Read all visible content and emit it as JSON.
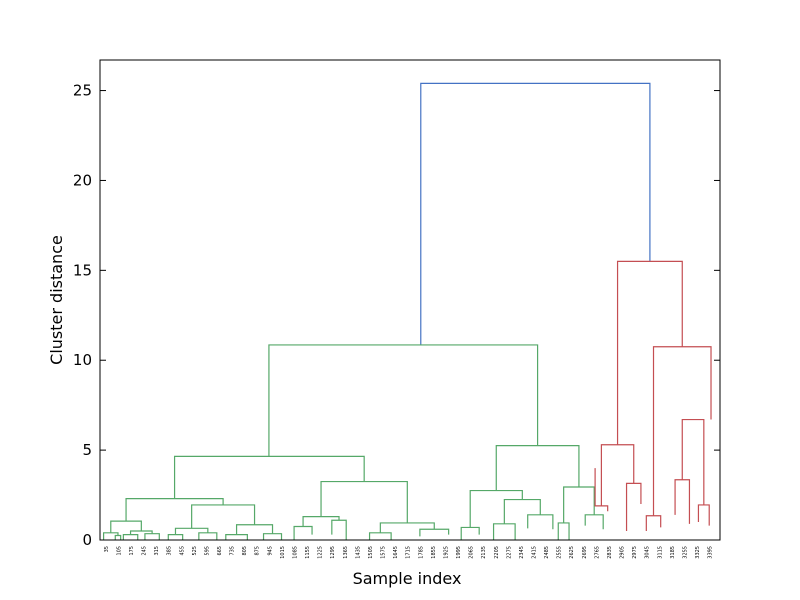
{
  "chart_data": {
    "type": "dendrogram",
    "title": "",
    "xlabel": "Sample index",
    "ylabel": "Cluster distance",
    "ylim": [
      0,
      26.7
    ],
    "yticks": [
      0,
      5,
      10,
      15,
      20,
      25
    ],
    "xlim": [
      0,
      3450
    ],
    "grid": false,
    "colors": {
      "root": "#4472c4",
      "cluster_a": "#55a868",
      "cluster_b": "#c44e52"
    },
    "xtick_labels": [
      "35",
      "105",
      "175",
      "245",
      "315",
      "385",
      "455",
      "525",
      "595",
      "665",
      "735",
      "805",
      "875",
      "945",
      "1015",
      "1085",
      "1155",
      "1225",
      "1295",
      "1365",
      "1435",
      "1505",
      "1575",
      "1645",
      "1715",
      "1785",
      "1855",
      "1925",
      "1995",
      "2065",
      "2135",
      "2205",
      "2275",
      "2345",
      "2415",
      "2485",
      "2555",
      "2625",
      "2695",
      "2765",
      "2835",
      "2905",
      "2975",
      "3045",
      "3115",
      "3185",
      "3255",
      "3325",
      "3395"
    ],
    "merges": [
      {
        "color": "root",
        "x1": 1785,
        "x2": 3060,
        "h": 25.4,
        "b1": 10.85,
        "b2": 15.5
      },
      {
        "color": "cluster_a",
        "x1": 940,
        "x2": 2435,
        "h": 10.85,
        "b1": 4.65,
        "b2": 5.25
      },
      {
        "color": "cluster_a",
        "x1": 415,
        "x2": 1470,
        "h": 4.65,
        "b1": 2.3,
        "b2": 3.25
      },
      {
        "color": "cluster_a",
        "x1": 145,
        "x2": 685,
        "h": 2.3,
        "b1": 1.05,
        "b2": 1.95
      },
      {
        "color": "cluster_a",
        "x1": 60,
        "x2": 230,
        "h": 1.05,
        "b1": 0.4,
        "b2": 0.5
      },
      {
        "color": "cluster_a",
        "x1": 20,
        "x2": 100,
        "h": 0.4,
        "b1": 0,
        "b2": 0.25
      },
      {
        "color": "cluster_a",
        "x1": 85,
        "x2": 115,
        "h": 0.25,
        "b1": 0,
        "b2": 0
      },
      {
        "color": "cluster_a",
        "x1": 170,
        "x2": 290,
        "h": 0.5,
        "b1": 0.3,
        "b2": 0.35
      },
      {
        "color": "cluster_a",
        "x1": 130,
        "x2": 210,
        "h": 0.3,
        "b1": 0,
        "b2": 0
      },
      {
        "color": "cluster_a",
        "x1": 250,
        "x2": 330,
        "h": 0.35,
        "b1": 0,
        "b2": 0
      },
      {
        "color": "cluster_a",
        "x1": 510,
        "x2": 860,
        "h": 1.95,
        "b1": 0.65,
        "b2": 0.85
      },
      {
        "color": "cluster_a",
        "x1": 420,
        "x2": 600,
        "h": 0.65,
        "b1": 0.3,
        "b2": 0.4
      },
      {
        "color": "cluster_a",
        "x1": 380,
        "x2": 460,
        "h": 0.3,
        "b1": 0,
        "b2": 0
      },
      {
        "color": "cluster_a",
        "x1": 550,
        "x2": 650,
        "h": 0.4,
        "b1": 0,
        "b2": 0
      },
      {
        "color": "cluster_a",
        "x1": 760,
        "x2": 960,
        "h": 0.85,
        "b1": 0.3,
        "b2": 0.35
      },
      {
        "color": "cluster_a",
        "x1": 700,
        "x2": 820,
        "h": 0.3,
        "b1": 0,
        "b2": 0
      },
      {
        "color": "cluster_a",
        "x1": 910,
        "x2": 1010,
        "h": 0.35,
        "b1": 0,
        "b2": 0
      },
      {
        "color": "cluster_a",
        "x1": 1230,
        "x2": 1710,
        "h": 3.25,
        "b1": 1.3,
        "b2": 0.95
      },
      {
        "color": "cluster_a",
        "x1": 1130,
        "x2": 1330,
        "h": 1.3,
        "b1": 0.75,
        "b2": 1.1
      },
      {
        "color": "cluster_a",
        "x1": 1080,
        "x2": 1180,
        "h": 0.75,
        "b1": 0,
        "b2": 0.3
      },
      {
        "color": "cluster_a",
        "x1": 1290,
        "x2": 1370,
        "h": 1.1,
        "b1": 0.3,
        "b2": 0
      },
      {
        "color": "cluster_a",
        "x1": 1560,
        "x2": 1860,
        "h": 0.95,
        "b1": 0.4,
        "b2": 0.6
      },
      {
        "color": "cluster_a",
        "x1": 1500,
        "x2": 1620,
        "h": 0.4,
        "b1": 0,
        "b2": 0
      },
      {
        "color": "cluster_a",
        "x1": 1780,
        "x2": 1940,
        "h": 0.6,
        "b1": 0.2,
        "b2": 0.3
      },
      {
        "color": "cluster_a",
        "x1": 2205,
        "x2": 2665,
        "h": 5.25,
        "b1": 2.75,
        "b2": 2.95
      },
      {
        "color": "cluster_a",
        "x1": 2060,
        "x2": 2350,
        "h": 2.75,
        "b1": 0.7,
        "b2": 2.25
      },
      {
        "color": "cluster_a",
        "x1": 2010,
        "x2": 2110,
        "h": 0.7,
        "b1": 0,
        "b2": 0.3
      },
      {
        "color": "cluster_a",
        "x1": 2250,
        "x2": 2450,
        "h": 2.25,
        "b1": 0.9,
        "b2": 1.4
      },
      {
        "color": "cluster_a",
        "x1": 2190,
        "x2": 2310,
        "h": 0.9,
        "b1": 0,
        "b2": 0
      },
      {
        "color": "cluster_a",
        "x1": 2380,
        "x2": 2520,
        "h": 1.4,
        "b1": 0.65,
        "b2": 0.6
      },
      {
        "color": "cluster_a",
        "x1": 2580,
        "x2": 2750,
        "h": 2.95,
        "b1": 0.95,
        "b2": 1.4
      },
      {
        "color": "cluster_a",
        "x1": 2550,
        "x2": 2610,
        "h": 0.95,
        "b1": 0,
        "b2": 0
      },
      {
        "color": "cluster_a",
        "x1": 2700,
        "x2": 2800,
        "h": 1.4,
        "b1": 0.8,
        "b2": 0.6
      },
      {
        "color": "cluster_b",
        "x1": 2880,
        "x2": 3240,
        "h": 15.5,
        "b1": 5.3,
        "b2": 10.75
      },
      {
        "color": "cluster_b",
        "x1": 2790,
        "x2": 2970,
        "h": 5.3,
        "b1": 1.9,
        "b2": 3.15
      },
      {
        "color": "cluster_b",
        "x1": 2755,
        "x2": 2825,
        "h": 1.9,
        "b1": 4.0,
        "b2": 1.6
      },
      {
        "color": "cluster_b",
        "x1": 2930,
        "x2": 3010,
        "h": 3.15,
        "b1": 0.5,
        "b2": 2.0
      },
      {
        "color": "cluster_b",
        "x1": 3080,
        "x2": 3400,
        "h": 10.75,
        "b1": 1.35,
        "b2": 6.7
      },
      {
        "color": "cluster_b",
        "x1": 3040,
        "x2": 3120,
        "h": 1.35,
        "b1": 0.5,
        "b2": 0.7
      },
      {
        "color": "cluster_b",
        "x1": 3240,
        "x2": 3360,
        "h": 6.7,
        "b1": 3.35,
        "b2": 1.95
      },
      {
        "color": "cluster_b",
        "x1": 3200,
        "x2": 3280,
        "h": 3.35,
        "b1": 1.4,
        "b2": 0.9
      },
      {
        "color": "cluster_b",
        "x1": 3330,
        "x2": 3390,
        "h": 1.95,
        "b1": 1.0,
        "b2": 0.8
      }
    ]
  }
}
